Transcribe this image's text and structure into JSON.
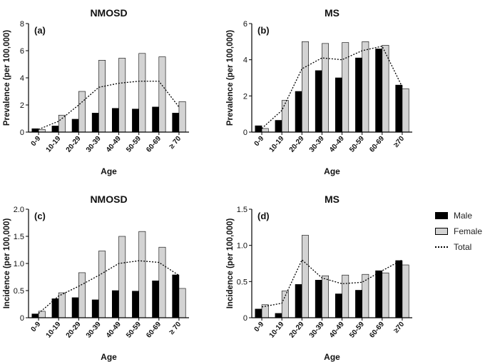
{
  "legend": {
    "male_label": "Male",
    "female_label": "Female",
    "total_label": "Total"
  },
  "colors": {
    "male": "#000000",
    "female": "#d3d3d3",
    "total": "#000000"
  },
  "chart_data": [
    {
      "type": "bar",
      "panel_label": "(a)",
      "title": "NMOSD",
      "xlabel": "Age",
      "ylabel": "Prevalence (per 100,000)",
      "categories": [
        "0-9",
        "10-19",
        "20-29",
        "30-39",
        "40-49",
        "50-59",
        "60-69",
        "≥ 70"
      ],
      "ylim": [
        0,
        8
      ],
      "yticks": [
        0,
        2,
        4,
        6,
        8
      ],
      "series": [
        {
          "name": "Male",
          "kind": "bar",
          "values": [
            0.25,
            0.45,
            0.95,
            1.4,
            1.75,
            1.7,
            1.85,
            1.4
          ]
        },
        {
          "name": "Female",
          "kind": "bar",
          "values": [
            0.2,
            1.25,
            3.0,
            5.3,
            5.45,
            5.8,
            5.55,
            2.25
          ]
        },
        {
          "name": "Total",
          "kind": "line",
          "values": [
            0.2,
            0.8,
            2.0,
            3.3,
            3.6,
            3.75,
            3.75,
            1.85
          ]
        }
      ]
    },
    {
      "type": "bar",
      "panel_label": "(b)",
      "title": "MS",
      "xlabel": "Age",
      "ylabel": "Prevalence (per 100,000)",
      "categories": [
        "0-9",
        "10-19",
        "20-29",
        "30-39",
        "40-49",
        "50-59",
        "60-69",
        "≥70"
      ],
      "ylim": [
        0,
        6
      ],
      "yticks": [
        0,
        2,
        4,
        6
      ],
      "series": [
        {
          "name": "Male",
          "kind": "bar",
          "values": [
            0.35,
            0.65,
            2.25,
            3.4,
            3.0,
            4.1,
            4.6,
            2.6
          ]
        },
        {
          "name": "Female",
          "kind": "bar",
          "values": [
            0.2,
            1.75,
            5.0,
            4.9,
            4.95,
            5.0,
            4.8,
            2.4
          ]
        },
        {
          "name": "Total",
          "kind": "line",
          "values": [
            0.2,
            1.2,
            3.5,
            4.1,
            4.0,
            4.5,
            4.75,
            2.5
          ]
        }
      ]
    },
    {
      "type": "bar",
      "panel_label": "(c)",
      "title": "NMOSD",
      "xlabel": "Age",
      "ylabel": "Incidence (per 100,000)",
      "categories": [
        "0-9",
        "10-19",
        "20-29",
        "30-39",
        "40-49",
        "50-59",
        "60-69",
        "≥ 70"
      ],
      "ylim": [
        0,
        2.0
      ],
      "yticks": [
        0,
        0.5,
        1.0,
        1.5,
        2.0
      ],
      "ytick_labels": [
        "0",
        "0.5",
        "1.0",
        "1.5",
        "2.0"
      ],
      "series": [
        {
          "name": "Male",
          "kind": "bar",
          "values": [
            0.07,
            0.35,
            0.37,
            0.33,
            0.5,
            0.49,
            0.68,
            0.79
          ]
        },
        {
          "name": "Female",
          "kind": "bar",
          "values": [
            0.12,
            0.46,
            0.83,
            1.23,
            1.5,
            1.59,
            1.3,
            0.54
          ]
        },
        {
          "name": "Total",
          "kind": "line",
          "values": [
            0.08,
            0.4,
            0.58,
            0.78,
            1.0,
            1.05,
            1.02,
            0.78
          ]
        }
      ]
    },
    {
      "type": "bar",
      "panel_label": "(d)",
      "title": "MS",
      "xlabel": "Age",
      "ylabel": "Incidence (per 100,000)",
      "categories": [
        "0-9",
        "10-19",
        "20-29",
        "30-39",
        "40-49",
        "50-59",
        "60-69",
        "≥70"
      ],
      "ylim": [
        0,
        1.5
      ],
      "yticks": [
        0,
        0.5,
        1.0,
        1.5
      ],
      "ytick_labels": [
        "0",
        "0.5",
        "1.0",
        "1.5"
      ],
      "series": [
        {
          "name": "Male",
          "kind": "bar",
          "values": [
            0.12,
            0.06,
            0.46,
            0.52,
            0.33,
            0.38,
            0.65,
            0.79
          ]
        },
        {
          "name": "Female",
          "kind": "bar",
          "values": [
            0.18,
            0.37,
            1.14,
            0.58,
            0.59,
            0.6,
            0.62,
            0.73
          ]
        },
        {
          "name": "Total",
          "kind": "line",
          "values": [
            0.15,
            0.2,
            0.8,
            0.55,
            0.47,
            0.49,
            0.65,
            0.8
          ]
        }
      ]
    }
  ]
}
